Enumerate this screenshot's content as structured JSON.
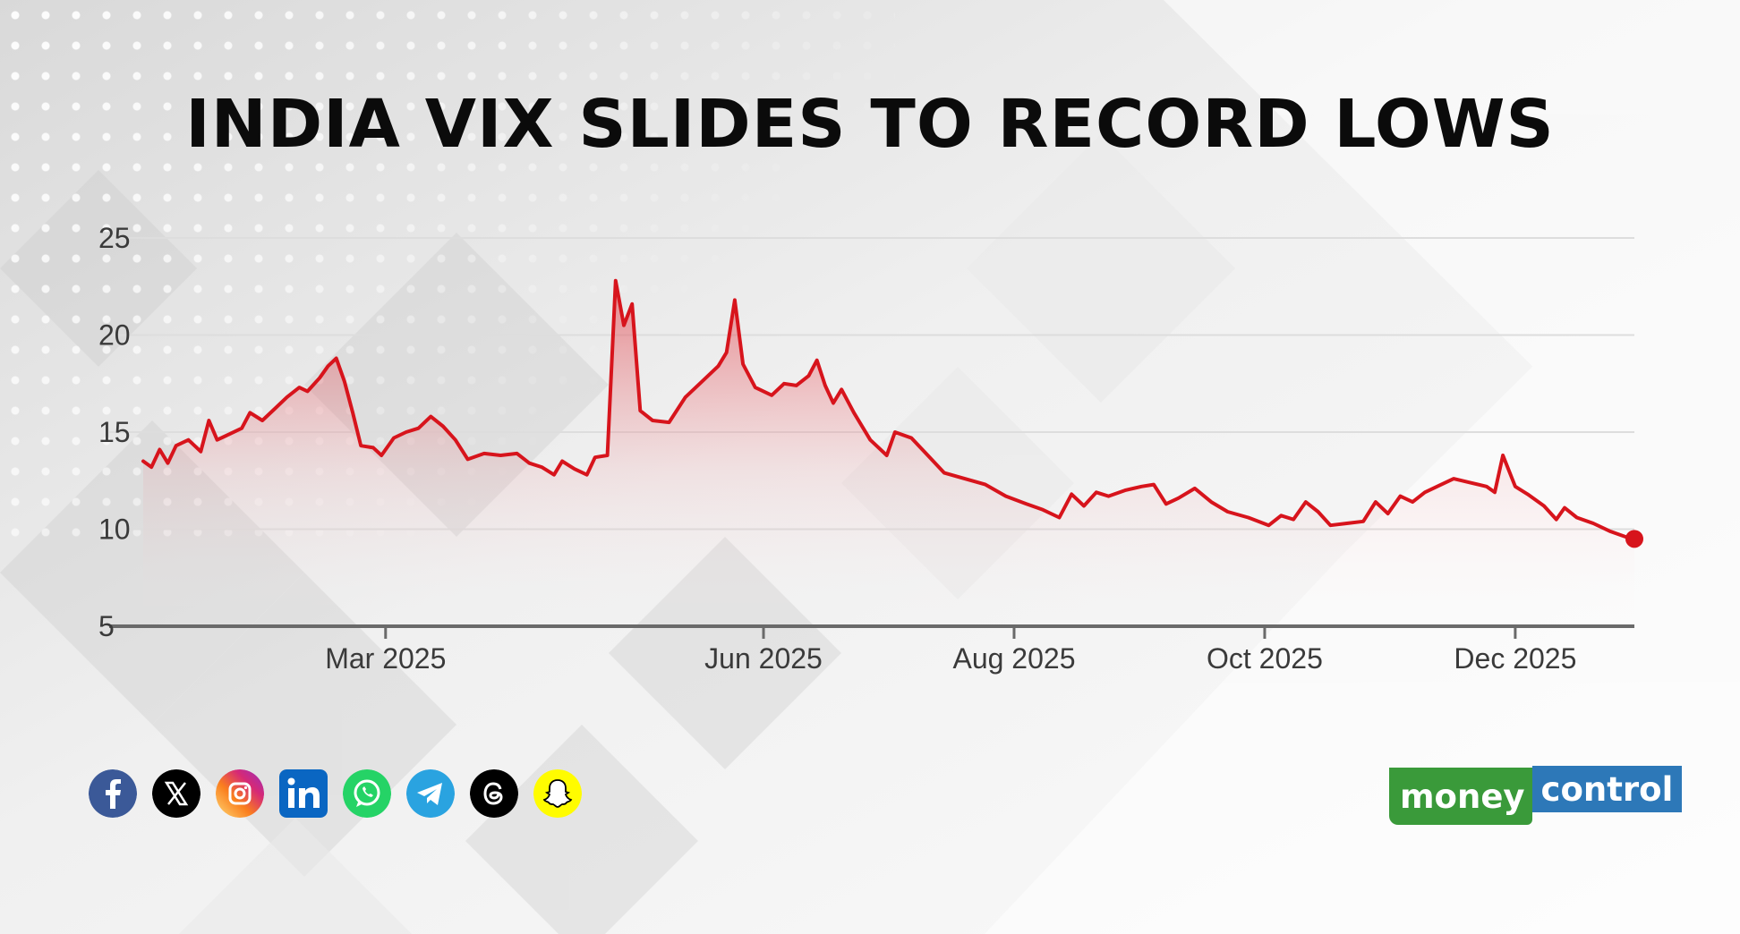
{
  "title": "INDIA VIX SLIDES TO RECORD LOWS",
  "colors": {
    "line": "#d7141c",
    "area_top": "#e0202a",
    "axis": "#6a6a6a",
    "gridline": "#dddddd",
    "moneycontrol_green": "#3a9a3a",
    "moneycontrol_blue": "#2d78b8"
  },
  "social_icons": [
    {
      "name": "facebook-icon",
      "color": "#3b5998"
    },
    {
      "name": "x-twitter-icon",
      "color": "#000000"
    },
    {
      "name": "instagram-icon",
      "color": "#d62976"
    },
    {
      "name": "linkedin-icon",
      "color": "#0a66c2"
    },
    {
      "name": "whatsapp-icon",
      "color": "#25d366"
    },
    {
      "name": "telegram-icon",
      "color": "#2aa3e0"
    },
    {
      "name": "threads-icon",
      "color": "#000000"
    },
    {
      "name": "snapchat-icon",
      "color": "#fffc00"
    }
  ],
  "logo": {
    "part1": "money",
    "part2": "control"
  },
  "chart_data": {
    "type": "area",
    "title": "INDIA VIX SLIDES TO RECORD LOWS",
    "xlabel": "",
    "ylabel": "",
    "ylim": [
      5,
      25
    ],
    "yticks": [
      5,
      10,
      15,
      20,
      25
    ],
    "xlim": [
      "2025-01-01",
      "2025-12-30"
    ],
    "xticks": [
      {
        "date": "2025-03-01",
        "label": "Mar 2025"
      },
      {
        "date": "2025-06-01",
        "label": "Jun 2025"
      },
      {
        "date": "2025-08-01",
        "label": "Aug 2025"
      },
      {
        "date": "2025-10-01",
        "label": "Oct 2025"
      },
      {
        "date": "2025-12-01",
        "label": "Dec 2025"
      }
    ],
    "grid": true,
    "series": [
      {
        "points": [
          [
            "2025-01-01",
            13.5
          ],
          [
            "2025-01-03",
            13.2
          ],
          [
            "2025-01-05",
            14.1
          ],
          [
            "2025-01-07",
            13.4
          ],
          [
            "2025-01-09",
            14.3
          ],
          [
            "2025-01-12",
            14.6
          ],
          [
            "2025-01-15",
            14.0
          ],
          [
            "2025-01-17",
            15.6
          ],
          [
            "2025-01-19",
            14.6
          ],
          [
            "2025-01-22",
            14.9
          ],
          [
            "2025-01-25",
            15.2
          ],
          [
            "2025-01-27",
            16.0
          ],
          [
            "2025-01-30",
            15.6
          ],
          [
            "2025-02-02",
            16.2
          ],
          [
            "2025-02-05",
            16.8
          ],
          [
            "2025-02-08",
            17.3
          ],
          [
            "2025-02-10",
            17.1
          ],
          [
            "2025-02-13",
            17.8
          ],
          [
            "2025-02-15",
            18.4
          ],
          [
            "2025-02-17",
            18.8
          ],
          [
            "2025-02-19",
            17.6
          ],
          [
            "2025-02-21",
            16.0
          ],
          [
            "2025-02-23",
            14.3
          ],
          [
            "2025-02-26",
            14.2
          ],
          [
            "2025-02-28",
            13.8
          ],
          [
            "2025-03-03",
            14.7
          ],
          [
            "2025-03-06",
            15.0
          ],
          [
            "2025-03-09",
            15.2
          ],
          [
            "2025-03-12",
            15.8
          ],
          [
            "2025-03-15",
            15.3
          ],
          [
            "2025-03-18",
            14.6
          ],
          [
            "2025-03-21",
            13.6
          ],
          [
            "2025-03-25",
            13.9
          ],
          [
            "2025-03-29",
            13.8
          ],
          [
            "2025-04-02",
            13.9
          ],
          [
            "2025-04-05",
            13.4
          ],
          [
            "2025-04-08",
            13.2
          ],
          [
            "2025-04-11",
            12.8
          ],
          [
            "2025-04-13",
            13.5
          ],
          [
            "2025-04-16",
            13.1
          ],
          [
            "2025-04-19",
            12.8
          ],
          [
            "2025-04-21",
            13.7
          ],
          [
            "2025-04-24",
            13.8
          ],
          [
            "2025-04-26",
            22.8
          ],
          [
            "2025-04-28",
            20.5
          ],
          [
            "2025-04-30",
            21.6
          ],
          [
            "2025-05-02",
            16.1
          ],
          [
            "2025-05-05",
            15.6
          ],
          [
            "2025-05-09",
            15.5
          ],
          [
            "2025-05-13",
            16.8
          ],
          [
            "2025-05-17",
            17.6
          ],
          [
            "2025-05-21",
            18.4
          ],
          [
            "2025-05-23",
            19.1
          ],
          [
            "2025-05-25",
            21.8
          ],
          [
            "2025-05-27",
            18.5
          ],
          [
            "2025-05-30",
            17.3
          ],
          [
            "2025-06-03",
            16.9
          ],
          [
            "2025-06-06",
            17.5
          ],
          [
            "2025-06-09",
            17.4
          ],
          [
            "2025-06-12",
            17.9
          ],
          [
            "2025-06-14",
            18.7
          ],
          [
            "2025-06-16",
            17.4
          ],
          [
            "2025-06-18",
            16.5
          ],
          [
            "2025-06-20",
            17.2
          ],
          [
            "2025-06-23",
            16.0
          ],
          [
            "2025-06-27",
            14.6
          ],
          [
            "2025-07-01",
            13.8
          ],
          [
            "2025-07-03",
            15.0
          ],
          [
            "2025-07-07",
            14.7
          ],
          [
            "2025-07-11",
            13.8
          ],
          [
            "2025-07-15",
            12.9
          ],
          [
            "2025-07-20",
            12.6
          ],
          [
            "2025-07-25",
            12.3
          ],
          [
            "2025-07-30",
            11.7
          ],
          [
            "2025-08-04",
            11.3
          ],
          [
            "2025-08-08",
            11.0
          ],
          [
            "2025-08-12",
            10.6
          ],
          [
            "2025-08-15",
            11.8
          ],
          [
            "2025-08-18",
            11.2
          ],
          [
            "2025-08-21",
            11.9
          ],
          [
            "2025-08-24",
            11.7
          ],
          [
            "2025-08-28",
            12.0
          ],
          [
            "2025-09-01",
            12.2
          ],
          [
            "2025-09-04",
            12.3
          ],
          [
            "2025-09-07",
            11.3
          ],
          [
            "2025-09-10",
            11.6
          ],
          [
            "2025-09-14",
            12.1
          ],
          [
            "2025-09-18",
            11.4
          ],
          [
            "2025-09-22",
            10.9
          ],
          [
            "2025-09-27",
            10.6
          ],
          [
            "2025-10-02",
            10.2
          ],
          [
            "2025-10-05",
            10.7
          ],
          [
            "2025-10-08",
            10.5
          ],
          [
            "2025-10-11",
            11.4
          ],
          [
            "2025-10-14",
            10.9
          ],
          [
            "2025-10-17",
            10.2
          ],
          [
            "2025-10-21",
            10.3
          ],
          [
            "2025-10-25",
            10.4
          ],
          [
            "2025-10-28",
            11.4
          ],
          [
            "2025-10-31",
            10.8
          ],
          [
            "2025-11-03",
            11.7
          ],
          [
            "2025-11-06",
            11.4
          ],
          [
            "2025-11-09",
            11.9
          ],
          [
            "2025-11-13",
            12.3
          ],
          [
            "2025-11-16",
            12.6
          ],
          [
            "2025-11-20",
            12.4
          ],
          [
            "2025-11-24",
            12.2
          ],
          [
            "2025-11-26",
            11.9
          ],
          [
            "2025-11-28",
            13.8
          ],
          [
            "2025-12-01",
            12.2
          ],
          [
            "2025-12-04",
            11.8
          ],
          [
            "2025-12-08",
            11.2
          ],
          [
            "2025-12-11",
            10.5
          ],
          [
            "2025-12-13",
            11.1
          ],
          [
            "2025-12-16",
            10.6
          ],
          [
            "2025-12-20",
            10.3
          ],
          [
            "2025-12-24",
            9.9
          ],
          [
            "2025-12-28",
            9.6
          ],
          [
            "2025-12-30",
            9.5
          ]
        ]
      }
    ]
  }
}
